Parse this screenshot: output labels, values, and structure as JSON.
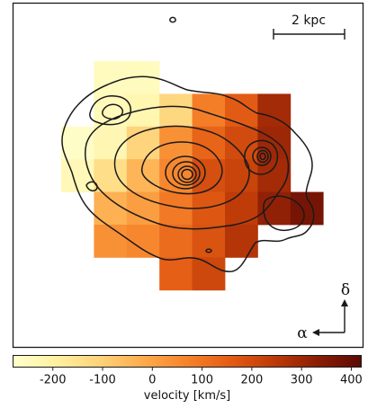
{
  "chart_data": {
    "type": "heatmap",
    "title": "",
    "colorbar": {
      "label": "velocity [km/s]",
      "range": [
        -280,
        420
      ],
      "ticks": [
        -200,
        -100,
        0,
        100,
        200,
        300,
        400
      ],
      "tick_labels": [
        "-200",
        "-100",
        "0",
        "100",
        "200",
        "300",
        "400"
      ],
      "colormap": "YlOrBr (light yellow to dark red-brown)"
    },
    "scale_bar_label": "2 kpc",
    "compass": {
      "north_label": "δ",
      "east_label": "α"
    },
    "overlay": "intensity contours",
    "grid": false,
    "pixel_grid": {
      "columns": 8,
      "rows": 7,
      "values": [
        [
          null,
          -255,
          -255,
          null,
          null,
          null,
          null,
          null
        ],
        [
          null,
          -245,
          -225,
          -120,
          80,
          160,
          290,
          null
        ],
        [
          -270,
          -230,
          -110,
          40,
          140,
          200,
          300,
          null
        ],
        [
          -240,
          -140,
          -40,
          60,
          190,
          220,
          290,
          null
        ],
        [
          null,
          -30,
          10,
          90,
          170,
          240,
          320,
          370
        ],
        [
          null,
          40,
          60,
          120,
          180,
          260,
          null,
          null
        ],
        [
          null,
          null,
          null,
          150,
          210,
          null,
          null,
          null
        ]
      ]
    }
  },
  "colors": {
    "frame": "#1a1a1a",
    "contour": "#1a1a1a",
    "colormap_stops": [
      "#ffffcc",
      "#fff0a0",
      "#fed27a",
      "#fdab4c",
      "#f6822a",
      "#e35c14",
      "#bd3a08",
      "#8a1d06",
      "#5c0a03"
    ]
  }
}
